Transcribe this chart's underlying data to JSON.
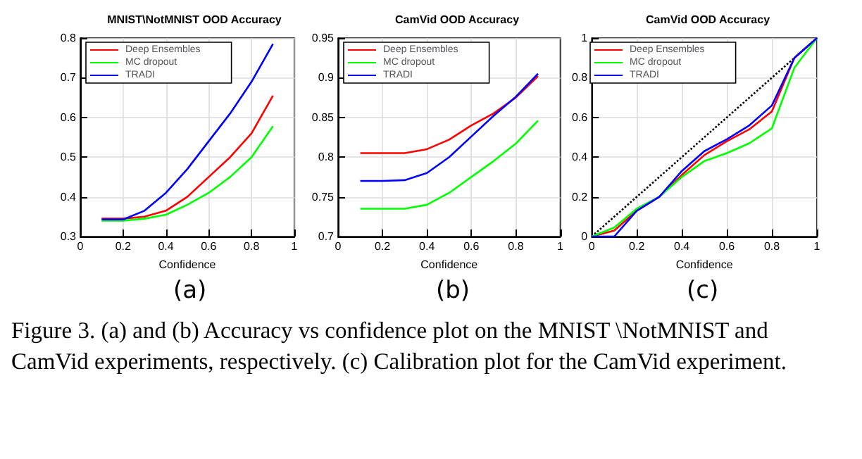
{
  "chart_data": [
    {
      "type": "line",
      "title": "MNIST\\NotMNIST OOD Accuracy",
      "xlabel": "Confidence",
      "annotations": [
        "(a)",
        "Figure 3. (a) and (b) Accuracy vs confidence plot on the MNIST \\NotMNIST and CamVid experiments, respectively. (c) Calibration plot for the CamVid experiment."
      ],
      "x": [
        0.1,
        0.2,
        0.3,
        0.4,
        0.5,
        0.6,
        0.7,
        0.8,
        0.9
      ],
      "series": [
        {
          "name": "Deep Ensembles",
          "color": "#ff0000",
          "values": [
            0.345,
            0.345,
            0.35,
            0.365,
            0.4,
            0.45,
            0.5,
            0.56,
            0.655
          ]
        },
        {
          "name": "MC dropout",
          "color": "#00ff00",
          "values": [
            0.34,
            0.34,
            0.345,
            0.355,
            0.38,
            0.41,
            0.45,
            0.5,
            0.578
          ]
        },
        {
          "name": "TRADI",
          "color": "#0000ff",
          "values": [
            0.343,
            0.343,
            0.365,
            0.41,
            0.47,
            0.54,
            0.61,
            0.69,
            0.785
          ]
        }
      ],
      "xlim": [
        0,
        1
      ],
      "xticks": [
        0,
        0.2,
        0.4,
        0.6,
        0.8,
        1
      ],
      "ylim": [
        0.3,
        0.8
      ],
      "yticks": [
        0.3,
        0.4,
        0.5,
        0.6,
        0.7,
        0.8
      ],
      "grid": true,
      "legend": "top left",
      "marker": "none"
    },
    {
      "type": "line",
      "title": "CamVid OOD Accuracy",
      "xlabel": "Confidence",
      "annotations": [
        "(b)"
      ],
      "x": [
        0.1,
        0.2,
        0.3,
        0.4,
        0.5,
        0.6,
        0.7,
        0.8,
        0.9
      ],
      "series": [
        {
          "name": "Deep Ensembles",
          "color": "#ff0000",
          "values": [
            0.805,
            0.805,
            0.805,
            0.81,
            0.822,
            0.84,
            0.855,
            0.875,
            0.902
          ]
        },
        {
          "name": "MC dropout",
          "color": "#00ff00",
          "values": [
            0.735,
            0.735,
            0.735,
            0.74,
            0.755,
            0.775,
            0.795,
            0.817,
            0.846
          ]
        },
        {
          "name": "TRADI",
          "color": "#0000ff",
          "values": [
            0.77,
            0.77,
            0.771,
            0.78,
            0.8,
            0.826,
            0.852,
            0.876,
            0.905
          ]
        }
      ],
      "xlim": [
        0,
        1
      ],
      "xticks": [
        0,
        0.2,
        0.4,
        0.6,
        0.8,
        1
      ],
      "ylim": [
        0.7,
        0.95
      ],
      "yticks": [
        0.7,
        0.75,
        0.8,
        0.85,
        0.9,
        0.95
      ],
      "grid": true,
      "legend": "top left",
      "marker": "none"
    },
    {
      "type": "line",
      "title": "CamVid OOD Accuracy",
      "xlabel": "Confidence",
      "annotations": [
        "(c)"
      ],
      "x": [
        0,
        0.1,
        0.2,
        0.3,
        0.4,
        0.5,
        0.6,
        0.7,
        0.8,
        0.9,
        1
      ],
      "series": [
        {
          "name": "Deep Ensembles",
          "color": "#ff0000",
          "values": [
            0,
            0.03,
            0.13,
            0.2,
            0.31,
            0.41,
            0.48,
            0.54,
            0.63,
            0.9,
            1
          ]
        },
        {
          "name": "MC dropout",
          "color": "#00ff00",
          "values": [
            0,
            0.045,
            0.14,
            0.2,
            0.3,
            0.38,
            0.42,
            0.47,
            0.545,
            0.85,
            1
          ]
        },
        {
          "name": "TRADI",
          "color": "#0000ff",
          "values": [
            0,
            0,
            0.13,
            0.2,
            0.33,
            0.43,
            0.49,
            0.56,
            0.66,
            0.9,
            1
          ]
        },
        {
          "color": "#000000",
          "x": [
            0,
            1
          ],
          "values": [
            0,
            1
          ],
          "line_style": "dotted"
        }
      ],
      "xlim": [
        0,
        1
      ],
      "xticks": [
        0,
        0.2,
        0.4,
        0.6,
        0.8,
        1
      ],
      "ylim": [
        0,
        1
      ],
      "yticks": [
        0,
        0.2,
        0.4,
        0.6,
        0.8,
        1
      ],
      "grid": true,
      "legend": "top left",
      "marker": "none"
    }
  ]
}
